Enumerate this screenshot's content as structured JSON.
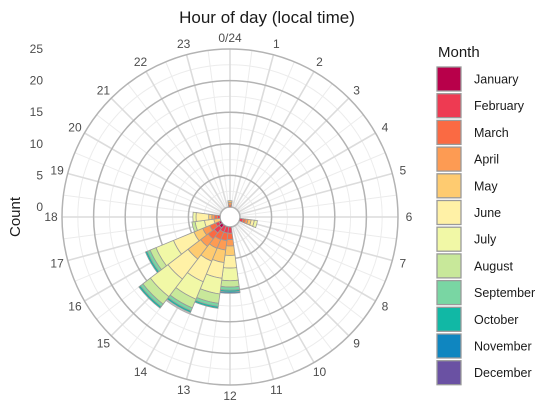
{
  "chart_data": {
    "type": "bar",
    "coordinate_system": "polar",
    "stacking": "stacked",
    "title": "Hour of day (local time)",
    "ylabel": "Count",
    "ylim": [
      0,
      25
    ],
    "r_ticks": [
      0,
      5,
      10,
      15,
      20,
      25
    ],
    "categories": [
      "0/24",
      "1",
      "2",
      "3",
      "4",
      "5",
      "6",
      "7",
      "8",
      "9",
      "10",
      "11",
      "12",
      "13",
      "14",
      "15",
      "16",
      "17",
      "18",
      "19",
      "20",
      "21",
      "22",
      "23"
    ],
    "legend_title": "Month",
    "legend_position": "right",
    "grid": true,
    "series": [
      {
        "name": "January",
        "color": "#b8004a",
        "values": [
          0,
          0,
          0,
          0,
          0,
          0,
          0,
          0,
          0,
          0,
          0,
          0,
          0,
          0,
          0,
          0.6,
          0.3,
          0,
          0,
          0,
          0,
          0,
          0,
          0
        ]
      },
      {
        "name": "February",
        "color": "#ee3a52",
        "values": [
          0,
          0,
          0,
          0,
          0,
          0,
          0,
          0.5,
          0,
          0,
          0,
          0,
          1,
          1,
          1,
          1,
          0.6,
          0,
          0.4,
          0,
          0,
          0,
          0,
          0
        ]
      },
      {
        "name": "March",
        "color": "#fa6a43",
        "values": [
          0.3,
          0,
          0,
          0,
          0,
          0,
          0,
          0.4,
          0,
          0,
          0,
          0,
          1,
          1.2,
          1.3,
          1.2,
          1,
          0,
          0.5,
          0,
          0,
          0,
          0,
          0
        ]
      },
      {
        "name": "April",
        "color": "#fd9b53",
        "values": [
          0.4,
          0,
          0,
          0,
          0,
          0,
          0,
          0.4,
          0,
          0,
          0,
          0,
          1,
          1.5,
          1.5,
          1.5,
          1.2,
          0,
          0.4,
          0,
          0,
          0,
          0,
          0
        ]
      },
      {
        "name": "May",
        "color": "#fecb70",
        "values": [
          0.3,
          0,
          0,
          0,
          0,
          0,
          0,
          0.5,
          0,
          0,
          0,
          0,
          1.5,
          2,
          2.2,
          2.5,
          1.5,
          1,
          0.5,
          0,
          0,
          0,
          0,
          0
        ]
      },
      {
        "name": "June",
        "color": "#fff1a6",
        "values": [
          0,
          0,
          0,
          0,
          0,
          0,
          0,
          0.5,
          0,
          0,
          0,
          0,
          2,
          2.5,
          3.5,
          4,
          3.5,
          1.5,
          2,
          0,
          0,
          0,
          0,
          0
        ]
      },
      {
        "name": "July",
        "color": "#f1f8a6",
        "values": [
          0,
          0,
          0,
          0,
          0,
          0,
          0,
          0.5,
          0,
          0,
          0,
          0,
          2,
          2.5,
          3,
          3.5,
          3,
          1.5,
          0.5,
          0,
          0,
          0,
          0,
          0
        ]
      },
      {
        "name": "August",
        "color": "#c8e89a",
        "values": [
          0,
          0,
          0,
          0,
          0,
          0,
          0,
          0,
          0,
          0,
          0,
          0,
          1,
          1.5,
          1.5,
          1.5,
          1,
          0.5,
          0,
          0,
          0,
          0,
          0,
          0
        ]
      },
      {
        "name": "September",
        "color": "#79d6a3",
        "values": [
          0,
          0,
          0,
          0,
          0,
          0,
          0,
          0,
          0,
          0,
          0,
          0,
          0.5,
          0.5,
          0.5,
          0.5,
          0.5,
          0,
          0,
          0,
          0,
          0,
          0,
          0
        ]
      },
      {
        "name": "October",
        "color": "#11b8a5",
        "values": [
          0,
          0,
          0,
          0,
          0,
          0,
          0,
          0,
          0,
          0,
          0,
          0,
          0.3,
          0.3,
          0.3,
          0.3,
          0.3,
          0,
          0,
          0,
          0,
          0,
          0,
          0
        ]
      },
      {
        "name": "November",
        "color": "#0f86c0",
        "values": [
          0,
          0,
          0,
          0,
          0,
          0,
          0,
          0,
          0,
          0,
          0,
          0,
          0.2,
          0,
          0,
          0,
          0,
          0,
          0,
          0,
          0,
          0,
          0,
          0
        ]
      },
      {
        "name": "December",
        "color": "#6a51a3",
        "values": [
          0,
          0,
          0,
          0,
          0,
          0,
          0,
          0,
          0,
          0,
          0,
          0,
          0,
          0,
          0,
          0,
          0,
          0,
          0,
          0,
          0,
          0,
          0,
          0
        ]
      }
    ]
  }
}
